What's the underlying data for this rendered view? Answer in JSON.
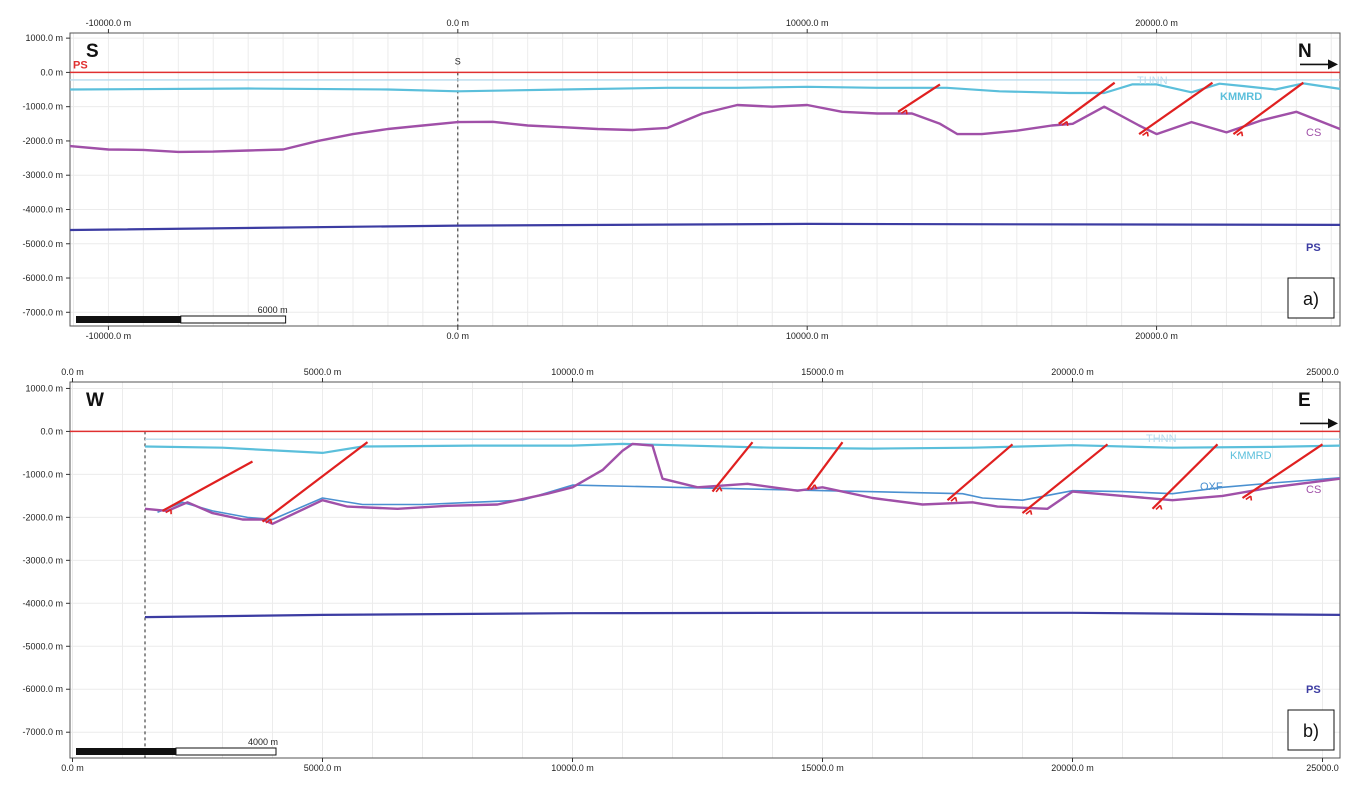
{
  "panels": [
    {
      "id": "a",
      "panel_label": "a)",
      "dir_left": "S",
      "dir_right": "N",
      "x_ticks": [
        {
          "v": -10000,
          "label": "-10000.0 m"
        },
        {
          "v": 0,
          "label": "0.0 m"
        },
        {
          "v": 10000,
          "label": "10000.0 m"
        },
        {
          "v": 20000,
          "label": "20000.0 m"
        }
      ],
      "y_ticks": [
        {
          "v": 1000,
          "label": "1000.0 m"
        },
        {
          "v": 0,
          "label": "0.0 m"
        },
        {
          "v": -1000,
          "label": "-1000.0 m"
        },
        {
          "v": -2000,
          "label": "-2000.0 m"
        },
        {
          "v": -3000,
          "label": "-3000.0 m"
        },
        {
          "v": -4000,
          "label": "-4000.0 m"
        },
        {
          "v": -5000,
          "label": "-5000.0 m"
        },
        {
          "v": -6000,
          "label": "-6000.0 m"
        },
        {
          "v": -7000,
          "label": "-7000.0 m"
        }
      ],
      "x_range": [
        -11100,
        25250
      ],
      "y_range": [
        -7400,
        1150
      ],
      "scale_bar_label": "6000 m",
      "scale_bar_length": 6000,
      "section_marker": {
        "v": 0,
        "label": "S"
      },
      "horizons": [
        {
          "name": "SURFACE",
          "label": "",
          "color": "#e03030",
          "width": 1.5,
          "points": [
            [
              -11100,
              0
            ],
            [
              25250,
              0
            ]
          ]
        },
        {
          "name": "THNN",
          "label": "THNN",
          "color": "#b8dcee",
          "width": 1.4,
          "points": [
            [
              -11100,
              -220
            ],
            [
              25250,
              -220
            ]
          ]
        },
        {
          "name": "KMMRD",
          "label": "KMMRD",
          "color": "#5bbfdb",
          "width": 2.2,
          "points": [
            [
              -11100,
              -500
            ],
            [
              -6000,
              -470
            ],
            [
              -2000,
              -500
            ],
            [
              0,
              -550
            ],
            [
              3000,
              -500
            ],
            [
              6000,
              -450
            ],
            [
              8000,
              -450
            ],
            [
              10000,
              -420
            ],
            [
              12000,
              -450
            ],
            [
              14000,
              -450
            ],
            [
              15500,
              -550
            ],
            [
              17500,
              -600
            ],
            [
              18500,
              -600
            ],
            [
              19300,
              -350
            ],
            [
              20000,
              -350
            ],
            [
              21000,
              -580
            ],
            [
              21800,
              -330
            ],
            [
              22500,
              -400
            ],
            [
              23400,
              -500
            ],
            [
              24200,
              -320
            ],
            [
              25250,
              -480
            ]
          ]
        },
        {
          "name": "CS",
          "label": "CS",
          "color": "#a050a8",
          "width": 2.4,
          "points": [
            [
              -11100,
              -2150
            ],
            [
              -10000,
              -2250
            ],
            [
              -9000,
              -2260
            ],
            [
              -8000,
              -2320
            ],
            [
              -7000,
              -2310
            ],
            [
              -6000,
              -2280
            ],
            [
              -5000,
              -2250
            ],
            [
              -4000,
              -2000
            ],
            [
              -3000,
              -1800
            ],
            [
              -2000,
              -1650
            ],
            [
              -1000,
              -1550
            ],
            [
              0,
              -1450
            ],
            [
              1000,
              -1440
            ],
            [
              2000,
              -1550
            ],
            [
              3000,
              -1600
            ],
            [
              4000,
              -1650
            ],
            [
              5000,
              -1680
            ],
            [
              6000,
              -1620
            ],
            [
              7000,
              -1200
            ],
            [
              8000,
              -950
            ],
            [
              9000,
              -1000
            ],
            [
              10000,
              -950
            ],
            [
              11000,
              -1150
            ],
            [
              12000,
              -1200
            ],
            [
              13000,
              -1200
            ],
            [
              13800,
              -1500
            ],
            [
              14300,
              -1800
            ],
            [
              15000,
              -1800
            ],
            [
              16000,
              -1700
            ],
            [
              17000,
              -1550
            ],
            [
              17600,
              -1500
            ],
            [
              18500,
              -1000
            ],
            [
              19500,
              -1550
            ],
            [
              20000,
              -1800
            ],
            [
              21000,
              -1450
            ],
            [
              22000,
              -1750
            ],
            [
              23000,
              -1400
            ],
            [
              24000,
              -1150
            ],
            [
              25250,
              -1650
            ]
          ]
        },
        {
          "name": "PS",
          "label": "PS",
          "color": "#3c3ca2",
          "width": 2.2,
          "points": [
            [
              -11100,
              -4600
            ],
            [
              0,
              -4470
            ],
            [
              10000,
              -4420
            ],
            [
              25250,
              -4450
            ]
          ]
        }
      ],
      "surface_label": "PS",
      "faults": [
        [
          [
            12600,
            -1150
          ],
          [
            13800,
            -350
          ]
        ],
        [
          [
            17200,
            -1500
          ],
          [
            18800,
            -300
          ]
        ],
        [
          [
            19500,
            -1800
          ],
          [
            21600,
            -300
          ]
        ],
        [
          [
            22200,
            -1800
          ],
          [
            24200,
            -300
          ]
        ]
      ]
    },
    {
      "id": "b",
      "panel_label": "b)",
      "dir_left": "W",
      "dir_right": "E",
      "x_ticks": [
        {
          "v": 0,
          "label": "0.0 m"
        },
        {
          "v": 5000,
          "label": "5000.0 m"
        },
        {
          "v": 10000,
          "label": "10000.0 m"
        },
        {
          "v": 15000,
          "label": "15000.0 m"
        },
        {
          "v": 20000,
          "label": "20000.0 m"
        },
        {
          "v": 25000,
          "label": "25000.0"
        }
      ],
      "y_ticks": [
        {
          "v": 1000,
          "label": "1000.0 m"
        },
        {
          "v": 0,
          "label": "0.0 m"
        },
        {
          "v": -1000,
          "label": "-1000.0 m"
        },
        {
          "v": -2000,
          "label": "-2000.0 m"
        },
        {
          "v": -3000,
          "label": "-3000.0 m"
        },
        {
          "v": -4000,
          "label": "-4000.0 m"
        },
        {
          "v": -5000,
          "label": "-5000.0 m"
        },
        {
          "v": -6000,
          "label": "-6000.0 m"
        },
        {
          "v": -7000,
          "label": "-7000.0 m"
        }
      ],
      "x_range": [
        -50,
        25350
      ],
      "y_range": [
        -7600,
        1150
      ],
      "scale_bar_label": "4000 m",
      "scale_bar_length": 4000,
      "section_marker": {
        "v": 1450,
        "label": ""
      },
      "horizons": [
        {
          "name": "SURFACE",
          "label": "",
          "color": "#e03030",
          "width": 1.5,
          "points": [
            [
              -50,
              0
            ],
            [
              25350,
              0
            ]
          ]
        },
        {
          "name": "THNN",
          "label": "THNN",
          "color": "#b8dcee",
          "width": 1.4,
          "points": [
            [
              1450,
              -180
            ],
            [
              25350,
              -180
            ]
          ]
        },
        {
          "name": "KMMRD",
          "label": "KMMRD",
          "color": "#5bbfdb",
          "width": 2.2,
          "points": [
            [
              1450,
              -350
            ],
            [
              3000,
              -380
            ],
            [
              5000,
              -500
            ],
            [
              5800,
              -350
            ],
            [
              8000,
              -330
            ],
            [
              10000,
              -330
            ],
            [
              11000,
              -290
            ],
            [
              12000,
              -320
            ],
            [
              14000,
              -380
            ],
            [
              16000,
              -400
            ],
            [
              18000,
              -380
            ],
            [
              20000,
              -320
            ],
            [
              22000,
              -380
            ],
            [
              24000,
              -360
            ],
            [
              25350,
              -330
            ]
          ]
        },
        {
          "name": "OXF",
          "label": "OXF",
          "color": "#4a90d0",
          "width": 1.6,
          "points": [
            [
              1700,
              -1880
            ],
            [
              2200,
              -1650
            ],
            [
              2800,
              -1850
            ],
            [
              3500,
              -2000
            ],
            [
              4000,
              -2050
            ],
            [
              5000,
              -1550
            ],
            [
              5800,
              -1700
            ],
            [
              7000,
              -1700
            ],
            [
              8000,
              -1650
            ],
            [
              9000,
              -1600
            ],
            [
              10000,
              -1250
            ],
            [
              17800,
              -1450
            ],
            [
              18200,
              -1550
            ],
            [
              19000,
              -1600
            ],
            [
              20000,
              -1380
            ],
            [
              21000,
              -1400
            ],
            [
              22000,
              -1450
            ],
            [
              23000,
              -1300
            ],
            [
              24000,
              -1200
            ],
            [
              25350,
              -1080
            ]
          ]
        },
        {
          "name": "CS",
          "label": "CS",
          "color": "#a050a8",
          "width": 2.4,
          "points": [
            [
              1450,
              -1800
            ],
            [
              1900,
              -1850
            ],
            [
              2300,
              -1650
            ],
            [
              2800,
              -1900
            ],
            [
              3400,
              -2050
            ],
            [
              3800,
              -2050
            ],
            [
              4000,
              -2150
            ],
            [
              5000,
              -1600
            ],
            [
              5500,
              -1750
            ],
            [
              6500,
              -1800
            ],
            [
              7500,
              -1730
            ],
            [
              8500,
              -1700
            ],
            [
              9500,
              -1450
            ],
            [
              10000,
              -1300
            ],
            [
              10600,
              -900
            ],
            [
              11000,
              -450
            ],
            [
              11200,
              -290
            ],
            [
              11600,
              -330
            ],
            [
              11800,
              -1100
            ],
            [
              12500,
              -1300
            ],
            [
              13500,
              -1220
            ],
            [
              14500,
              -1380
            ],
            [
              15000,
              -1300
            ],
            [
              16000,
              -1550
            ],
            [
              17000,
              -1700
            ],
            [
              18000,
              -1650
            ],
            [
              18500,
              -1750
            ],
            [
              19500,
              -1800
            ],
            [
              20000,
              -1400
            ],
            [
              21000,
              -1500
            ],
            [
              22000,
              -1600
            ],
            [
              23000,
              -1500
            ],
            [
              24000,
              -1300
            ],
            [
              25350,
              -1100
            ]
          ]
        },
        {
          "name": "PS",
          "label": "PS",
          "color": "#3c3ca2",
          "width": 2.2,
          "points": [
            [
              1450,
              -4320
            ],
            [
              5000,
              -4270
            ],
            [
              10000,
              -4230
            ],
            [
              15000,
              -4220
            ],
            [
              20000,
              -4220
            ],
            [
              25350,
              -4270
            ]
          ]
        }
      ],
      "surface_label": "",
      "faults": [
        [
          [
            1800,
            -1850
          ],
          [
            3600,
            -700
          ]
        ],
        [
          [
            3800,
            -2100
          ],
          [
            5900,
            -250
          ]
        ],
        [
          [
            12800,
            -1400
          ],
          [
            13600,
            -250
          ]
        ],
        [
          [
            14700,
            -1350
          ],
          [
            15400,
            -250
          ]
        ],
        [
          [
            17500,
            -1600
          ],
          [
            18800,
            -300
          ]
        ],
        [
          [
            19000,
            -1900
          ],
          [
            20700,
            -300
          ]
        ],
        [
          [
            21600,
            -1800
          ],
          [
            22900,
            -300
          ]
        ],
        [
          [
            23400,
            -1550
          ],
          [
            25000,
            -300
          ]
        ]
      ]
    }
  ]
}
